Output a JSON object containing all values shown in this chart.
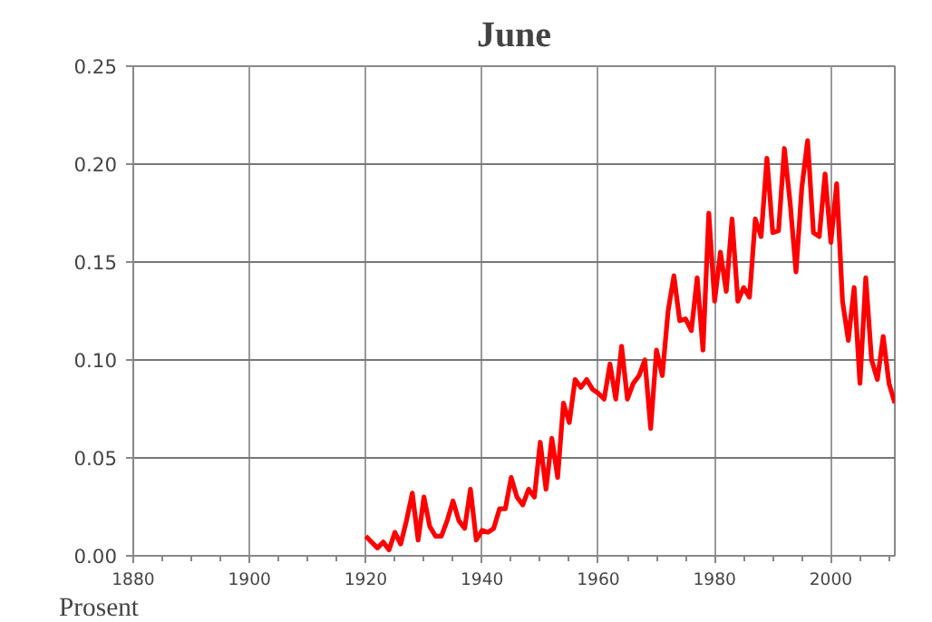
{
  "chart_data": {
    "type": "line",
    "title": "June",
    "ylabel": "Prosent",
    "x": [
      1920,
      1921,
      1922,
      1923,
      1924,
      1925,
      1926,
      1927,
      1928,
      1929,
      1930,
      1931,
      1932,
      1933,
      1934,
      1935,
      1936,
      1937,
      1938,
      1939,
      1940,
      1941,
      1942,
      1943,
      1944,
      1945,
      1946,
      1947,
      1948,
      1949,
      1950,
      1951,
      1952,
      1953,
      1954,
      1955,
      1956,
      1957,
      1958,
      1959,
      1960,
      1961,
      1962,
      1963,
      1964,
      1965,
      1966,
      1967,
      1968,
      1969,
      1970,
      1971,
      1972,
      1973,
      1974,
      1975,
      1976,
      1977,
      1978,
      1979,
      1980,
      1981,
      1982,
      1983,
      1984,
      1985,
      1986,
      1987,
      1988,
      1989,
      1990,
      1991,
      1992,
      1993,
      1994,
      1995,
      1996,
      1997,
      1998,
      1999,
      2000,
      2001,
      2002,
      2003,
      2004,
      2005,
      2006,
      2007,
      2008,
      2009,
      2010,
      2011
    ],
    "series": [
      {
        "color": "#ff0000",
        "values": [
          0.01,
          0.007,
          0.004,
          0.007,
          0.003,
          0.012,
          0.006,
          0.018,
          0.032,
          0.008,
          0.03,
          0.015,
          0.01,
          0.01,
          0.018,
          0.028,
          0.018,
          0.014,
          0.034,
          0.008,
          0.013,
          0.012,
          0.014,
          0.024,
          0.024,
          0.04,
          0.03,
          0.026,
          0.034,
          0.03,
          0.058,
          0.034,
          0.06,
          0.04,
          0.078,
          0.068,
          0.09,
          0.086,
          0.09,
          0.085,
          0.083,
          0.08,
          0.098,
          0.08,
          0.107,
          0.08,
          0.088,
          0.092,
          0.1,
          0.065,
          0.105,
          0.092,
          0.125,
          0.143,
          0.12,
          0.121,
          0.115,
          0.142,
          0.105,
          0.175,
          0.13,
          0.155,
          0.135,
          0.172,
          0.13,
          0.137,
          0.132,
          0.172,
          0.163,
          0.203,
          0.165,
          0.166,
          0.208,
          0.18,
          0.145,
          0.188,
          0.212,
          0.165,
          0.163,
          0.195,
          0.16,
          0.19,
          0.13,
          0.11,
          0.137,
          0.088,
          0.142,
          0.1,
          0.09,
          0.112,
          0.088,
          0.078
        ]
      }
    ],
    "xlim": [
      1880,
      2011
    ],
    "ylim": [
      0,
      0.25
    ],
    "xticks": [
      1880,
      1900,
      1920,
      1940,
      1960,
      1980,
      2000
    ],
    "yticks": [
      {
        "value": 0,
        "label": "0.00"
      },
      {
        "value": 0.05,
        "label": "0.05"
      },
      {
        "value": 0.1,
        "label": "0.10"
      },
      {
        "value": 0.15,
        "label": "0.15"
      },
      {
        "value": 0.2,
        "label": "0.20"
      },
      {
        "value": 0.25,
        "label": "0.25"
      }
    ],
    "grid": true,
    "marker": "none",
    "line_style": "solid"
  }
}
